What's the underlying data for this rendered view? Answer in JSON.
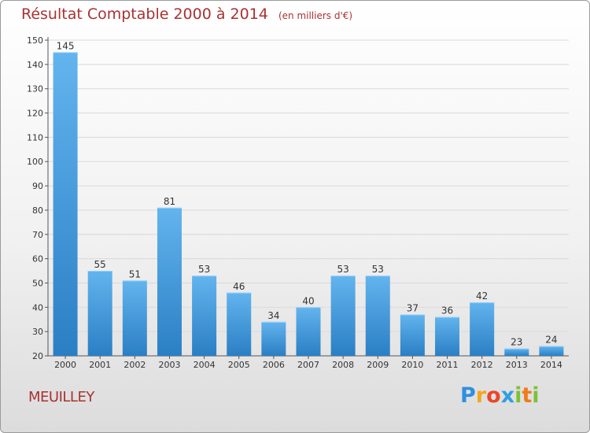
{
  "title": "Résultat Comptable 2000 à 2014",
  "subtitle": "(en milliers d'€)",
  "commune": "MEUILLEY",
  "logo": {
    "text": "Proxiti",
    "letters": [
      "P",
      "r",
      "o",
      "x",
      "i",
      "t",
      "i"
    ]
  },
  "colors": {
    "title": "#a83232",
    "bar_light": "#63b4ee",
    "bar_dark": "#2a7fc4",
    "grid": "#d9d9d9"
  },
  "chart_data": {
    "type": "bar",
    "title": "Résultat Comptable 2000 à 2014",
    "subtitle": "(en milliers d'€)",
    "xlabel": "",
    "ylabel": "",
    "categories": [
      "2000",
      "2001",
      "2002",
      "2003",
      "2004",
      "2005",
      "2006",
      "2007",
      "2008",
      "2009",
      "2010",
      "2011",
      "2012",
      "2013",
      "2014"
    ],
    "values": [
      145,
      55,
      51,
      81,
      53,
      46,
      34,
      40,
      53,
      53,
      37,
      36,
      42,
      23,
      24
    ],
    "ylim": [
      20,
      150
    ],
    "yticks": [
      20,
      30,
      40,
      50,
      60,
      70,
      80,
      90,
      100,
      110,
      120,
      130,
      140,
      150
    ],
    "grid": true,
    "data_labels": true,
    "legend": "none"
  }
}
